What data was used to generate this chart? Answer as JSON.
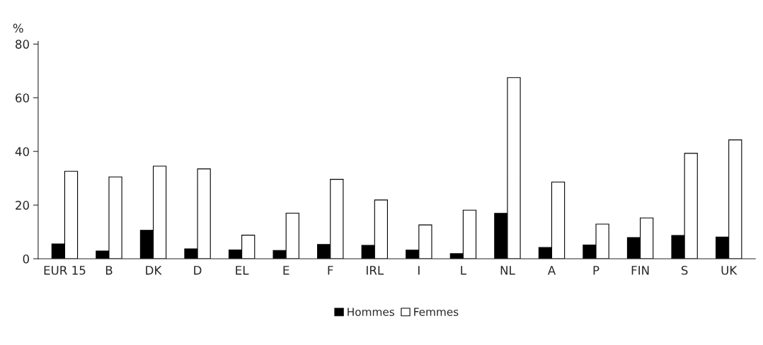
{
  "chart_data": {
    "type": "bar",
    "ylabel": "%",
    "categories": [
      "EUR 15",
      "B",
      "DK",
      "D",
      "EL",
      "E",
      "F",
      "IRL",
      "I",
      "L",
      "NL",
      "A",
      "P",
      "FIN",
      "S",
      "UK"
    ],
    "series": [
      {
        "name": "Hommes",
        "color": "#000000",
        "values": [
          5.5,
          2.9,
          10.6,
          3.7,
          3.3,
          3.1,
          5.3,
          5.0,
          3.2,
          1.9,
          16.9,
          4.2,
          5.1,
          7.9,
          8.7,
          8.1
        ]
      },
      {
        "name": "Femmes",
        "color": "#ffffff",
        "values": [
          32.6,
          30.5,
          34.5,
          33.5,
          8.8,
          17.0,
          29.6,
          21.9,
          12.6,
          18.1,
          67.5,
          28.6,
          12.9,
          15.2,
          39.3,
          44.3
        ]
      }
    ],
    "ylim": [
      0,
      81
    ],
    "yticks": [
      0,
      20,
      40,
      60,
      80
    ],
    "grid": false,
    "legend": "bottom"
  }
}
